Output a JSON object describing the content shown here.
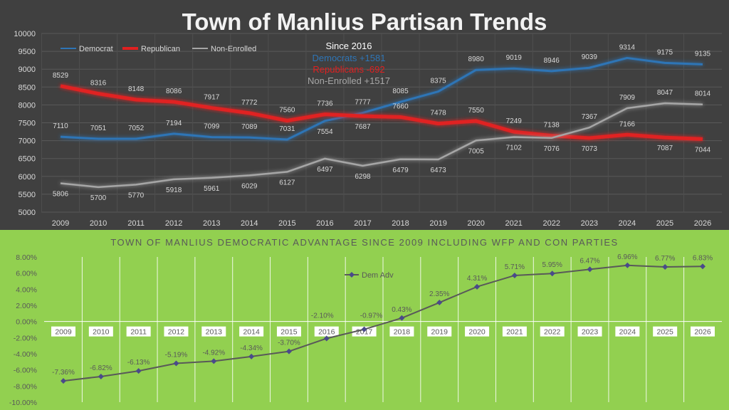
{
  "chart_data": [
    {
      "type": "line",
      "title": "Town of Manlius Partisan Trends",
      "x": [
        "2009",
        "2010",
        "2011",
        "2012",
        "2013",
        "2014",
        "2015",
        "2016",
        "2017",
        "2018",
        "2019",
        "2020",
        "2021",
        "2022",
        "2023",
        "2024",
        "2025",
        "2026"
      ],
      "ylim": [
        5000,
        10000
      ],
      "yticks": [
        5000,
        5500,
        6000,
        6500,
        7000,
        7500,
        8000,
        8500,
        9000,
        9500,
        10000
      ],
      "grid": true,
      "legend": "top-left",
      "series": [
        {
          "name": "Democrat",
          "color": "#2e75b6",
          "values": [
            7110,
            7051,
            7052,
            7194,
            7099,
            7089,
            7031,
            7554,
            7777,
            8085,
            8375,
            8980,
            9019,
            8946,
            9039,
            9314,
            9175,
            9135
          ]
        },
        {
          "name": "Republican",
          "color": "#e02020",
          "values": [
            8529,
            8316,
            8148,
            8086,
            7917,
            7772,
            7560,
            7736,
            7687,
            7660,
            7478,
            7550,
            7249,
            7138,
            7073,
            7166,
            7087,
            7044
          ]
        },
        {
          "name": "Non-Enrolled",
          "color": "#a6a6a6",
          "values": [
            5806,
            5700,
            5770,
            5918,
            5961,
            6029,
            6127,
            6497,
            6298,
            6479,
            6473,
            7005,
            7102,
            7076,
            7367,
            7909,
            8047,
            8014
          ]
        }
      ],
      "annotation": {
        "heading": "Since 2016",
        "lines": [
          {
            "text": "Democrats +1581",
            "color": "#2e75b6"
          },
          {
            "text": "Republicans -692",
            "color": "#e02020"
          },
          {
            "text": "Non-Enrolled +1517",
            "color": "#a6a6a6"
          }
        ]
      }
    },
    {
      "type": "line",
      "title": "TOWN OF MANLIUS DEMOCRATIC ADVANTAGE SINCE 2009 INCLUDING WFP AND CON PARTIES",
      "x": [
        "2009",
        "2010",
        "2011",
        "2012",
        "2013",
        "2014",
        "2015",
        "2016",
        "2017",
        "2018",
        "2019",
        "2020",
        "2021",
        "2022",
        "2023",
        "2024",
        "2025",
        "2026"
      ],
      "ylim": [
        -10,
        8
      ],
      "yticks": [
        -10,
        -8,
        -6,
        -4,
        -2,
        0,
        2,
        4,
        6,
        8
      ],
      "ytick_format": "percent_2dp",
      "grid": true,
      "legend": "top-center",
      "series": [
        {
          "name": "Dem Adv",
          "color": "#4a4a8a",
          "values": [
            -7.36,
            -6.82,
            -6.13,
            -5.19,
            -4.92,
            -4.34,
            -3.7,
            -2.1,
            -0.97,
            0.43,
            2.35,
            4.31,
            5.71,
            5.95,
            6.47,
            6.96,
            6.77,
            6.83
          ],
          "labels": [
            "-7.36%",
            "-6.82%",
            "-6.13%",
            "-5.19%",
            "-4.92%",
            "-4.34%",
            "-3.70%",
            "-2.10%",
            "-0.97%",
            "0.43%",
            "2.35%",
            "4.31%",
            "5.71%",
            "5.95%",
            "6.47%",
            "6.96%",
            "6.77%",
            "6.83%"
          ]
        }
      ]
    }
  ]
}
